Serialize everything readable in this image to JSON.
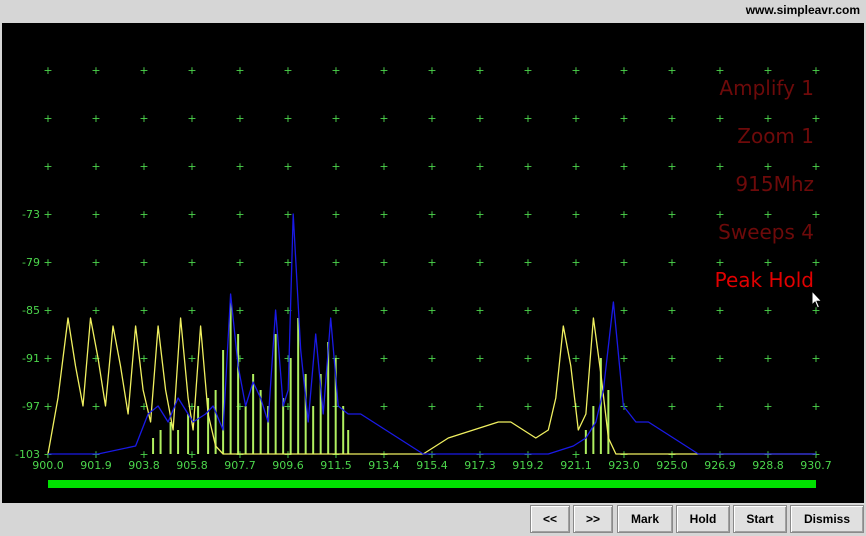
{
  "header": {
    "site": "www.simpleavr.com"
  },
  "overlay": {
    "amplify": "Amplify 1",
    "zoom": "Zoom 1",
    "freq": "915Mhz",
    "sweeps": "Sweeps 4",
    "peak_hold": "Peak Hold",
    "dim_color": "#6e0a0a",
    "active_color": "#e00000"
  },
  "buttons": {
    "prev": "<<",
    "next": ">>",
    "mark": "Mark",
    "hold": "Hold",
    "start": "Start",
    "dismiss": "Dismiss"
  },
  "colors": {
    "grid": "#4cd64c",
    "axis_text": "#4cd64c",
    "live_bars": "#b0f060",
    "peak_hold_line": "#1a1ae6",
    "trace_line": "#f0f060",
    "progress_bar": "#00e000"
  },
  "icons": {
    "cursor": "mouse-pointer-icon"
  },
  "chart_data": {
    "type": "line",
    "xlabel": "",
    "ylabel": "",
    "x_ticks": [
      "900.0",
      "901.9",
      "903.8",
      "905.8",
      "907.7",
      "909.6",
      "911.5",
      "913.4",
      "915.4",
      "917.3",
      "919.2",
      "921.1",
      "923.0",
      "925.0",
      "926.9",
      "928.8",
      "930.7"
    ],
    "y_ticks": [
      "-73",
      "-79",
      "-85",
      "-91",
      "-97",
      "-103"
    ],
    "xlim": [
      900.0,
      930.7
    ],
    "ylim": [
      -103,
      -55
    ],
    "progress": 1.0,
    "series": [
      {
        "color": "#f0f060",
        "x": [
          900.0,
          900.4,
          900.8,
          901.1,
          901.4,
          901.7,
          902.0,
          902.3,
          902.6,
          902.9,
          903.2,
          903.5,
          903.8,
          904.1,
          904.4,
          904.7,
          905.0,
          905.3,
          905.6,
          905.8,
          906.1,
          906.4,
          906.7,
          907.0,
          907.5,
          908.0,
          909.0,
          910.0,
          911.0,
          912.0,
          913.0,
          914.0,
          915.0,
          915.5,
          916.0,
          916.5,
          917.0,
          917.5,
          918.0,
          918.5,
          919.0,
          919.5,
          920.0,
          920.3,
          920.6,
          920.9,
          921.2,
          921.5,
          921.8,
          922.1,
          922.4,
          922.7,
          923.0,
          924.0,
          926.0,
          928.0,
          930.7
        ],
        "y": [
          -103,
          -96,
          -86,
          -92,
          -97,
          -86,
          -91,
          -97,
          -87,
          -92,
          -98,
          -87,
          -95,
          -99,
          -87,
          -95,
          -100,
          -86,
          -96,
          -100,
          -87,
          -98,
          -102,
          -103,
          -103,
          -103,
          -103,
          -103,
          -103,
          -103,
          -103,
          -103,
          -103,
          -102,
          -101,
          -100.5,
          -100,
          -99.5,
          -99,
          -99,
          -100,
          -101,
          -100,
          -96,
          -87,
          -92,
          -100,
          -98,
          -86,
          -93,
          -101,
          -103,
          -103,
          -103,
          -103,
          -103,
          -103
        ]
      },
      {
        "color": "#1a1ae6",
        "x": [
          900.0,
          902.0,
          903.5,
          904.0,
          904.4,
          904.8,
          905.2,
          905.8,
          906.3,
          906.6,
          907.0,
          907.3,
          907.6,
          907.9,
          908.2,
          908.5,
          908.8,
          909.1,
          909.4,
          909.6,
          909.8,
          910.1,
          910.4,
          910.7,
          911.0,
          911.3,
          911.6,
          912.0,
          912.5,
          913.0,
          913.5,
          914.0,
          914.5,
          915.0,
          916.0,
          920.0,
          921.0,
          921.5,
          921.9,
          922.2,
          922.6,
          923.0,
          923.5,
          924.0,
          924.5,
          925.0,
          925.5,
          926.0,
          927.0,
          930.7
        ],
        "y": [
          -103,
          -103,
          -102,
          -98,
          -97,
          -99,
          -96,
          -99,
          -98,
          -97,
          -100,
          -83,
          -92,
          -97,
          -94,
          -96,
          -99,
          -85,
          -97,
          -95,
          -73,
          -90,
          -99,
          -88,
          -98,
          -86,
          -97,
          -98,
          -98,
          -99,
          -100,
          -101,
          -102,
          -103,
          -103,
          -103,
          -102,
          -101,
          -99,
          -95,
          -84,
          -97,
          -99,
          -99,
          -100,
          -101,
          -102,
          -103,
          -103,
          -103
        ]
      },
      {
        "color": "#b0f060",
        "x": [
          904.2,
          904.5,
          904.9,
          905.2,
          905.6,
          906.0,
          906.4,
          906.7,
          907.0,
          907.3,
          907.6,
          907.9,
          908.2,
          908.5,
          908.8,
          909.1,
          909.4,
          909.7,
          910.0,
          910.3,
          910.6,
          910.9,
          911.2,
          911.5,
          911.8,
          912.0,
          921.5,
          921.8,
          922.1,
          922.4
        ],
        "y": [
          -101,
          -100,
          -99,
          -100,
          -98,
          -97,
          -96,
          -95,
          -90,
          -84,
          -88,
          -97,
          -93,
          -95,
          -97,
          -88,
          -96,
          -91,
          -86,
          -93,
          -97,
          -93,
          -89,
          -91,
          -97,
          -100,
          -100,
          -97,
          -91,
          -95
        ]
      }
    ]
  }
}
